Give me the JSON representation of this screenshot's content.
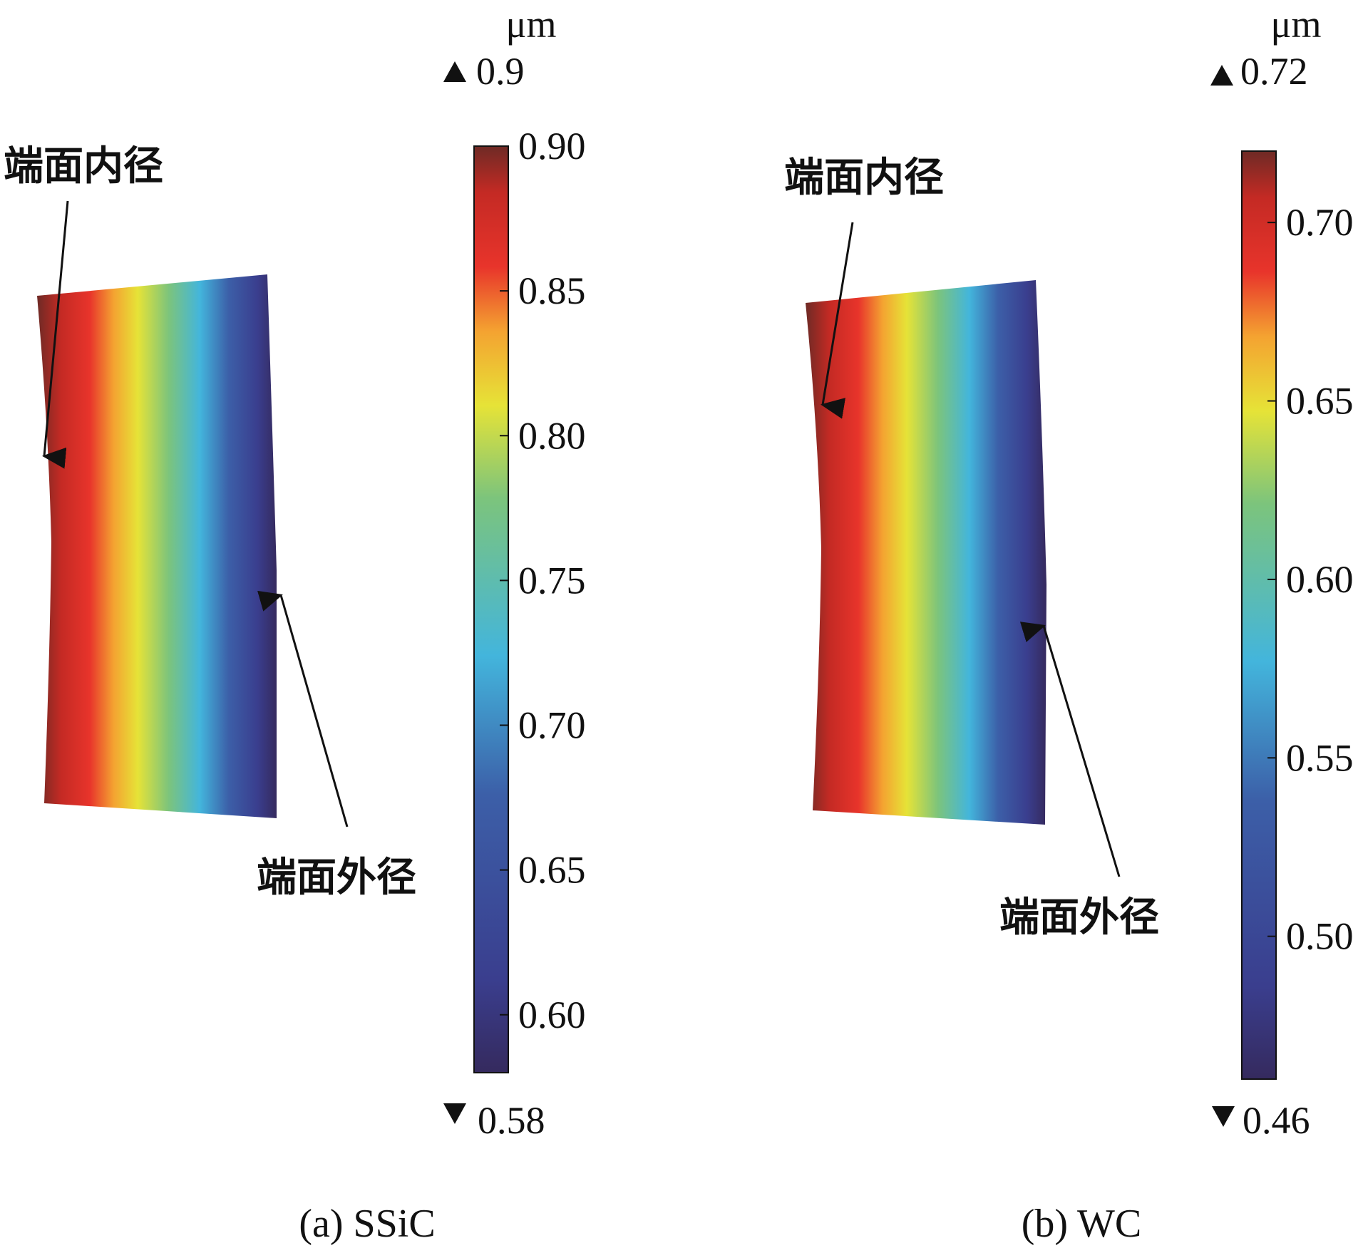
{
  "chart_data": [
    {
      "type": "heatmap",
      "caption": "(a) SSiC",
      "unit": "μm",
      "max_label": "0.9",
      "min_label": "0.58",
      "range": [
        0.58,
        0.9
      ],
      "colorbar_ticks": [
        "0.90",
        "0.85",
        "0.80",
        "0.75",
        "0.70",
        "0.65",
        "0.60"
      ],
      "annotations": [
        "端面内径",
        "端面外径"
      ]
    },
    {
      "type": "heatmap",
      "caption": "(b) WC",
      "unit": "μm",
      "max_label": "0.72",
      "min_label": "0.46",
      "range": [
        0.46,
        0.72
      ],
      "colorbar_ticks": [
        "0.70",
        "0.65",
        "0.60",
        "0.55",
        "0.50"
      ],
      "annotations": [
        "端面内径",
        "端面外径"
      ]
    }
  ],
  "colormap": [
    "#352a5e",
    "#3a3e8e",
    "#3c5fa8",
    "#43b5dc",
    "#7cc47c",
    "#e6e337",
    "#f4a331",
    "#e8342b",
    "#c42a24",
    "#6e2a25"
  ]
}
